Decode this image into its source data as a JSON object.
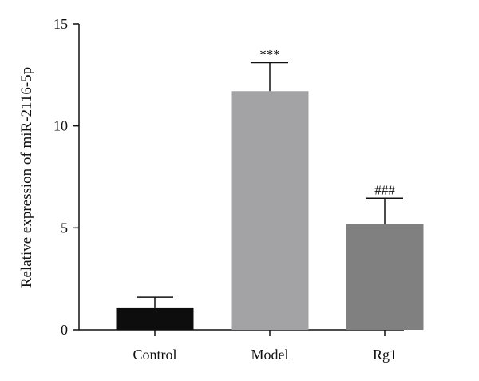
{
  "chart_data": {
    "type": "bar",
    "title": "",
    "xlabel": "",
    "ylabel": "Relative expression of miR-2116-5p",
    "categories": [
      "Control",
      "Model",
      "Rg1"
    ],
    "values": [
      1.1,
      11.7,
      5.2
    ],
    "errors": [
      0.5,
      1.4,
      1.25
    ],
    "annotations": [
      "",
      "***",
      "###"
    ],
    "bar_colors": [
      "#0d0d0d",
      "#a3a3a5",
      "#808080"
    ],
    "ylim": [
      0,
      15
    ],
    "yticks": [
      0,
      5,
      10,
      15
    ],
    "ytick_labels": [
      "0",
      "5",
      "10",
      "15"
    ],
    "grid": false,
    "legend": "none"
  }
}
